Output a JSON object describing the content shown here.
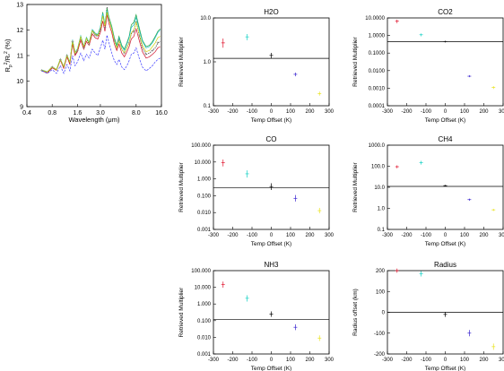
{
  "colors": {
    "temp_offsets": [
      "#e0102a",
      "#15d1c4",
      "#000000",
      "#3a25d0",
      "#e8e21a"
    ],
    "spectrum": [
      "#000000",
      "#d0102a",
      "#20a040",
      "#20c0c0",
      "#d0d010",
      "#4040ff"
    ]
  },
  "chart_data": [
    {
      "id": "spectrum",
      "type": "line",
      "title": "",
      "xlabel": "Wavelength (μm)",
      "ylabel_main": "R",
      "ylabel_sub1": "p",
      "ylabel_sup1": "2",
      "ylabel_mid": "/R",
      "ylabel_sub2": "*",
      "ylabel_sup2": "2",
      "ylabel_end": " (%)",
      "x_log": true,
      "xlim": [
        0.4,
        16.0
      ],
      "ylim": [
        9,
        13
      ],
      "x_ticks": [
        0.4,
        0.8,
        1.6,
        3.0,
        8.0,
        16.0
      ],
      "x_tick_labels": [
        "0.4",
        "0.8",
        "1.6",
        "3.0",
        "8.0",
        "16.0"
      ],
      "y_ticks": [
        9,
        10,
        11,
        12,
        13
      ],
      "y_tick_labels": [
        "9",
        "10",
        "11",
        "12",
        "13"
      ],
      "data_x": [
        0.6,
        0.7,
        0.8,
        0.9,
        1.0,
        1.1,
        1.2,
        1.3,
        1.4,
        1.5,
        1.6,
        1.75,
        1.9,
        2.05,
        2.2,
        2.4,
        2.6,
        2.8,
        3.0,
        3.2,
        3.4,
        3.6,
        3.8,
        4.1,
        4.4,
        4.7,
        5.0,
        5.4,
        5.8,
        6.2,
        6.6,
        7.0,
        7.5,
        8.0,
        8.7,
        9.5,
        10.5,
        11.5,
        12.5,
        13.5,
        14.5,
        15.5
      ],
      "series": [
        {
          "values": [
            10.42,
            10.35,
            10.55,
            10.45,
            10.85,
            10.55,
            11.0,
            10.7,
            11.55,
            11.05,
            11.2,
            11.7,
            11.3,
            11.65,
            11.45,
            11.95,
            11.8,
            11.75,
            12.0,
            12.6,
            12.1,
            12.9,
            12.4,
            12.05,
            11.6,
            11.3,
            11.6,
            11.25,
            11.1,
            11.3,
            11.5,
            11.85,
            11.95,
            12.35,
            11.8,
            11.3,
            11.05,
            11.1,
            11.2,
            11.3,
            11.5,
            11.55
          ]
        },
        {
          "values": [
            10.4,
            10.32,
            10.52,
            10.42,
            10.82,
            10.5,
            10.95,
            10.65,
            11.45,
            11.0,
            11.15,
            11.6,
            11.25,
            11.55,
            11.4,
            11.85,
            11.7,
            11.65,
            11.9,
            12.35,
            11.95,
            12.6,
            12.25,
            11.9,
            11.45,
            11.2,
            11.45,
            11.1,
            10.95,
            11.15,
            11.35,
            11.65,
            11.75,
            12.05,
            11.6,
            11.15,
            10.9,
            10.95,
            11.05,
            11.15,
            11.3,
            11.35
          ]
        },
        {
          "values": [
            10.42,
            10.36,
            10.56,
            10.44,
            10.86,
            10.56,
            11.02,
            10.72,
            11.6,
            11.1,
            11.25,
            11.75,
            11.35,
            11.7,
            11.5,
            12.0,
            11.85,
            11.8,
            12.1,
            12.7,
            12.2,
            12.85,
            12.5,
            12.15,
            11.7,
            11.4,
            11.75,
            11.4,
            11.25,
            11.5,
            11.75,
            12.2,
            12.3,
            12.6,
            12.1,
            11.6,
            11.35,
            11.4,
            11.55,
            11.75,
            11.95,
            12.05
          ]
        },
        {
          "values": [
            10.44,
            10.37,
            10.57,
            10.46,
            10.87,
            10.57,
            11.03,
            10.74,
            11.62,
            11.12,
            11.27,
            11.78,
            11.37,
            11.72,
            11.52,
            12.02,
            11.88,
            11.83,
            12.12,
            12.65,
            12.2,
            12.75,
            12.45,
            12.1,
            11.65,
            11.35,
            11.7,
            11.35,
            11.2,
            11.45,
            11.7,
            12.1,
            12.2,
            12.5,
            12.0,
            11.55,
            11.3,
            11.35,
            11.5,
            11.7,
            11.9,
            12.0
          ]
        },
        {
          "values": [
            10.43,
            10.36,
            10.56,
            10.45,
            10.86,
            10.56,
            11.02,
            10.73,
            11.58,
            11.1,
            11.24,
            11.74,
            11.34,
            11.68,
            11.48,
            11.98,
            11.84,
            11.78,
            12.05,
            12.55,
            12.15,
            12.7,
            12.4,
            12.05,
            11.6,
            11.3,
            11.6,
            11.25,
            11.1,
            11.3,
            11.5,
            11.9,
            12.0,
            12.3,
            11.85,
            11.4,
            11.15,
            11.2,
            11.35,
            11.5,
            11.7,
            11.75
          ]
        },
        {
          "values": [
            10.4,
            10.3,
            10.45,
            10.3,
            10.6,
            10.3,
            10.65,
            10.4,
            11.0,
            10.6,
            10.75,
            11.1,
            10.8,
            11.05,
            10.9,
            11.25,
            11.1,
            11.0,
            11.3,
            11.6,
            11.25,
            11.8,
            11.5,
            11.1,
            10.8,
            10.65,
            10.85,
            10.55,
            10.45,
            10.6,
            10.8,
            11.05,
            11.1,
            11.3,
            10.9,
            10.55,
            10.4,
            10.5,
            10.6,
            10.75,
            10.85,
            10.9
          ]
        }
      ]
    },
    {
      "id": "h2o",
      "type": "scatter",
      "title": "H2O",
      "xlabel": "Temp Offset (K)",
      "ylabel": "Retrieved Multiplier",
      "y_log": true,
      "xlim": [
        -300,
        300
      ],
      "ylim": [
        0.1,
        10.0
      ],
      "x_ticks": [
        -300,
        -200,
        -100,
        0,
        100,
        200,
        300
      ],
      "x_tick_labels": [
        "-300",
        "-200",
        "-100",
        "0",
        "100",
        "200",
        "300"
      ],
      "y_ticks": [
        0.1,
        1.0,
        10.0
      ],
      "y_tick_labels": [
        "0.1",
        "1.0",
        "10.0"
      ],
      "ref_line": 1.2,
      "x": [
        -250,
        -125,
        0,
        125,
        250
      ],
      "y": [
        2.7,
        3.7,
        1.4,
        0.52,
        0.19
      ],
      "err_low": [
        2.1,
        3.1,
        1.2,
        0.47,
        0.17
      ],
      "err_high": [
        3.4,
        4.3,
        1.6,
        0.57,
        0.21
      ]
    },
    {
      "id": "co2",
      "type": "scatter",
      "title": "CO2",
      "xlabel": "Temp Offset (K)",
      "ylabel": "Retrieved Multiplier",
      "y_log": true,
      "xlim": [
        -300,
        300
      ],
      "ylim": [
        0.0001,
        10.0
      ],
      "x_ticks": [
        -300,
        -200,
        -100,
        0,
        100,
        200,
        300
      ],
      "x_tick_labels": [
        "-300",
        "-200",
        "-100",
        "0",
        "100",
        "200",
        "300"
      ],
      "y_ticks": [
        0.0001,
        0.001,
        0.01,
        0.1,
        1.0,
        10.0
      ],
      "y_tick_labels": [
        "0.0001",
        "0.0010",
        "0.0100",
        "0.1000",
        "1.0000",
        "10.0000"
      ],
      "ref_line": 0.45,
      "x": [
        -250,
        -125,
        0,
        125,
        250
      ],
      "y": [
        6.5,
        1.1,
        0.45,
        0.0048,
        0.0011
      ],
      "err_low": [
        5.0,
        0.9,
        0.4,
        0.0042,
        0.0009
      ],
      "err_high": [
        8.0,
        1.3,
        0.5,
        0.0055,
        0.0013
      ]
    },
    {
      "id": "co",
      "type": "scatter",
      "title": "CO",
      "xlabel": "Temp Offset (K)",
      "ylabel": "Retrieved Multiplier",
      "y_log": true,
      "xlim": [
        -300,
        300
      ],
      "ylim": [
        0.001,
        100.0
      ],
      "x_ticks": [
        -300,
        -200,
        -100,
        0,
        100,
        200,
        300
      ],
      "x_tick_labels": [
        "-300",
        "-200",
        "-100",
        "0",
        "100",
        "200",
        "300"
      ],
      "y_ticks": [
        0.001,
        0.01,
        0.1,
        1.0,
        10.0,
        100.0
      ],
      "y_tick_labels": [
        "0.001",
        "0.010",
        "0.100",
        "1.000",
        "10.000",
        "100.000"
      ],
      "ref_line": 0.3,
      "x": [
        -250,
        -125,
        0,
        125,
        250
      ],
      "y": [
        9.0,
        2.0,
        0.35,
        0.07,
        0.013
      ],
      "err_low": [
        5.5,
        1.2,
        0.22,
        0.045,
        0.009
      ],
      "err_high": [
        14.0,
        3.2,
        0.55,
        0.11,
        0.019
      ]
    },
    {
      "id": "ch4",
      "type": "scatter",
      "title": "CH4",
      "xlabel": "Temp Offset (K)",
      "ylabel": "Retrieved Multiplier",
      "y_log": true,
      "xlim": [
        -300,
        300
      ],
      "ylim": [
        0.1,
        1000.0
      ],
      "x_ticks": [
        -300,
        -200,
        -100,
        0,
        100,
        200,
        300
      ],
      "x_tick_labels": [
        "-300",
        "-200",
        "-100",
        "0",
        "100",
        "200",
        "300"
      ],
      "y_ticks": [
        0.1,
        1.0,
        10.0,
        100.0,
        1000.0
      ],
      "y_tick_labels": [
        "0.1",
        "1.0",
        "10.0",
        "100.0",
        "1000.0"
      ],
      "ref_line": 11.0,
      "x": [
        -250,
        -125,
        0,
        125,
        250
      ],
      "y": [
        95.0,
        150.0,
        12.0,
        2.6,
        0.85
      ],
      "err_low": [
        80.0,
        120.0,
        11.0,
        2.3,
        0.75
      ],
      "err_high": [
        110.0,
        180.0,
        13.0,
        2.9,
        0.95
      ]
    },
    {
      "id": "nh3",
      "type": "scatter",
      "title": "NH3",
      "xlabel": "Temp Offset (K)",
      "ylabel": "Retrieved Multiplier",
      "y_log": true,
      "xlim": [
        -300,
        300
      ],
      "ylim": [
        0.001,
        100.0
      ],
      "x_ticks": [
        -300,
        -200,
        -100,
        0,
        100,
        200,
        300
      ],
      "x_tick_labels": [
        "-300",
        "-200",
        "-100",
        "0",
        "100",
        "200",
        "300"
      ],
      "y_ticks": [
        0.001,
        0.01,
        0.1,
        1.0,
        10.0,
        100.0
      ],
      "y_tick_labels": [
        "0.001",
        "0.010",
        "0.100",
        "1.000",
        "10.000",
        "100.000"
      ],
      "ref_line": 0.12,
      "x": [
        -250,
        -125,
        0,
        125,
        250
      ],
      "y": [
        15.0,
        2.2,
        0.25,
        0.04,
        0.009
      ],
      "err_low": [
        9.5,
        1.4,
        0.17,
        0.027,
        0.006
      ],
      "err_high": [
        22.0,
        3.3,
        0.36,
        0.06,
        0.013
      ]
    },
    {
      "id": "radius",
      "type": "scatter",
      "title": "Radius",
      "xlabel": "Temp Offset (K)",
      "ylabel": "Radius offset (km)",
      "y_log": false,
      "xlim": [
        -300,
        300
      ],
      "ylim": [
        -200,
        200
      ],
      "x_ticks": [
        -300,
        -200,
        -100,
        0,
        100,
        200,
        300
      ],
      "x_tick_labels": [
        "-300",
        "-200",
        "-100",
        "0",
        "100",
        "200",
        "300"
      ],
      "y_ticks": [
        -200,
        -100,
        0,
        100,
        200
      ],
      "y_tick_labels": [
        "-200",
        "-100",
        "0",
        "100",
        "200"
      ],
      "ref_line": 0,
      "x": [
        -250,
        -125,
        0,
        125,
        250
      ],
      "y": [
        200,
        185,
        -10,
        -100,
        -165
      ],
      "err_low": [
        190,
        172,
        -22,
        -115,
        -180
      ],
      "err_high": [
        210,
        198,
        2,
        -85,
        -150
      ]
    }
  ]
}
